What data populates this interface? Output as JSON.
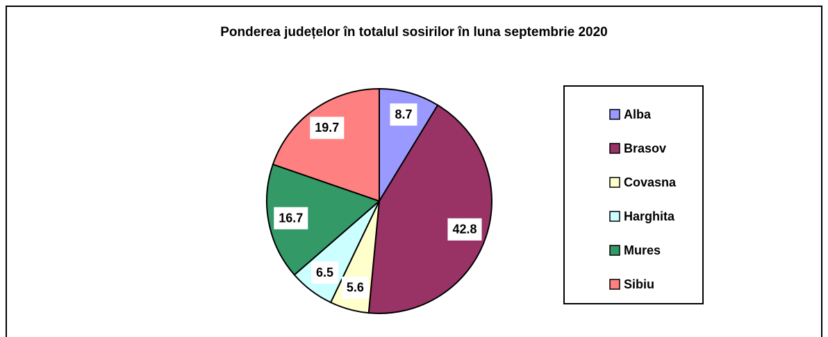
{
  "chart_data": {
    "type": "pie",
    "title": "Ponderea județelor în totalul sosirilor în luna septembrie 2020",
    "categories": [
      "Alba",
      "Brasov",
      "Covasna",
      "Harghita",
      "Mures",
      "Sibiu"
    ],
    "values": [
      8.7,
      42.8,
      5.6,
      6.5,
      16.7,
      19.7
    ],
    "colors": [
      "#9999ff",
      "#993366",
      "#ffffcc",
      "#ccffff",
      "#339966",
      "#ff8080"
    ],
    "legend": "right"
  }
}
